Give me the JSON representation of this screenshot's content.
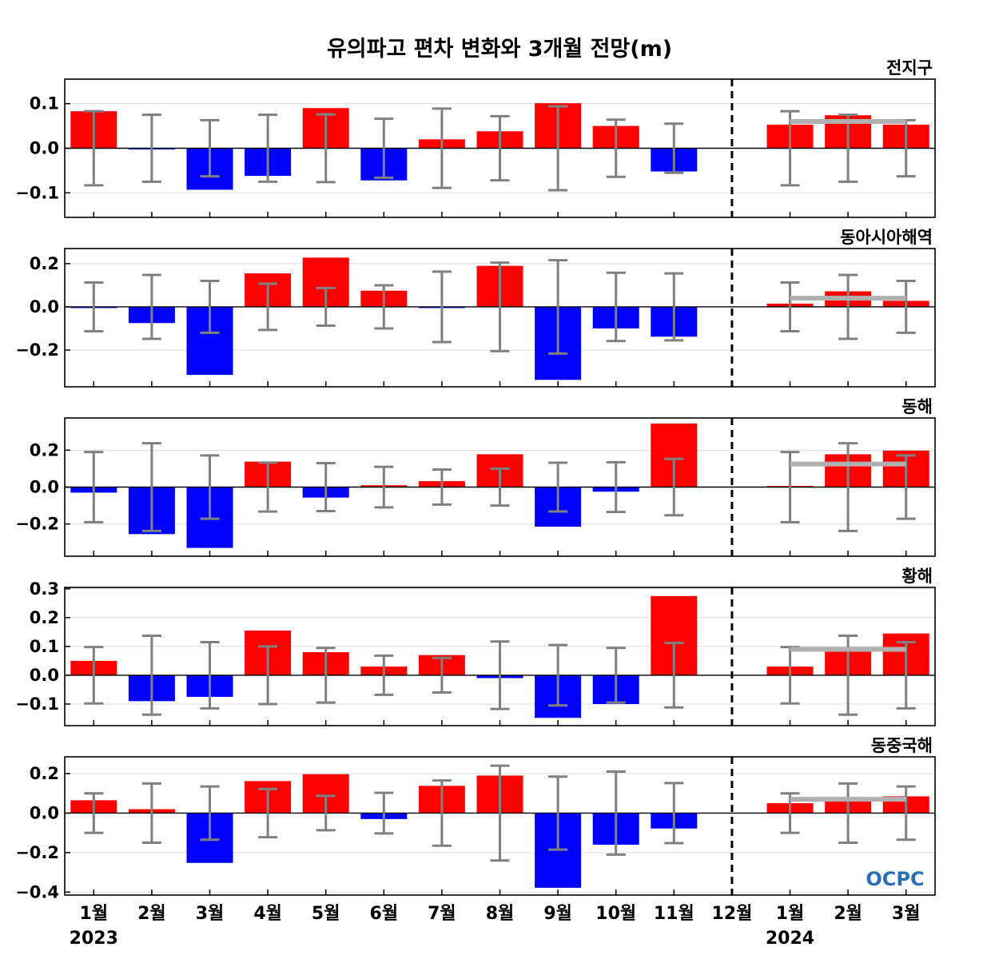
{
  "chart_data": {
    "type": "bar",
    "title": "유의파고 편차 변화와 3개월 전망(m)",
    "categories": [
      "1월",
      "2월",
      "3월",
      "4월",
      "5월",
      "6월",
      "7월",
      "8월",
      "9월",
      "10월",
      "11월",
      "12월",
      "1월",
      "2월",
      "3월"
    ],
    "year_labels": [
      "2023",
      "2024"
    ],
    "logo_text": "OCPC",
    "colors": {
      "positive": "#ff0000",
      "negative": "#0000ff",
      "errorbar": "#808080",
      "outlook_line": "#b0b0b0"
    },
    "panels": [
      {
        "region": "전지구",
        "ylim": [
          -0.155,
          0.155
        ],
        "yticks": [
          "0.1",
          "0.0",
          "−0.1"
        ],
        "ytick_values": [
          0.1,
          0.0,
          -0.1
        ],
        "values": [
          0.083,
          -0.001,
          -0.093,
          -0.062,
          0.09,
          -0.072,
          0.02,
          0.038,
          0.101,
          0.05,
          -0.052,
          0.0,
          0.053,
          0.074,
          0.053
        ],
        "error_range": [
          0.083,
          0.075,
          0.063,
          0.075,
          0.076,
          0.066,
          0.089,
          0.072,
          0.094,
          0.064,
          0.055,
          null,
          0.083,
          0.075,
          0.063
        ],
        "outlook_level": 0.06
      },
      {
        "region": "동아시아해역",
        "ylim": [
          -0.37,
          0.27
        ],
        "yticks": [
          "0.2",
          "0.0",
          "−0.2"
        ],
        "ytick_values": [
          0.2,
          0.0,
          -0.2
        ],
        "values": [
          -0.003,
          -0.075,
          -0.315,
          0.155,
          0.228,
          0.075,
          -0.002,
          0.19,
          -0.338,
          -0.1,
          -0.138,
          0.0,
          0.015,
          0.072,
          0.028
        ],
        "error_range": [
          0.113,
          0.148,
          0.12,
          0.107,
          0.087,
          0.1,
          0.163,
          0.205,
          0.216,
          0.158,
          0.155,
          null,
          0.113,
          0.148,
          0.12
        ],
        "outlook_level": 0.04
      },
      {
        "region": "동해",
        "ylim": [
          -0.375,
          0.375
        ],
        "yticks": [
          "0.2",
          "0.0",
          "−0.2"
        ],
        "ytick_values": [
          0.2,
          0.0,
          -0.2
        ],
        "values": [
          -0.03,
          -0.255,
          -0.33,
          0.138,
          -0.057,
          0.01,
          0.032,
          0.178,
          -0.215,
          -0.025,
          0.345,
          0.0,
          0.003,
          0.178,
          0.198
        ],
        "error_range": [
          0.19,
          0.238,
          0.172,
          0.133,
          0.13,
          0.11,
          0.095,
          0.1,
          0.132,
          0.135,
          0.153,
          null,
          0.19,
          0.238,
          0.172
        ],
        "outlook_level": 0.125
      },
      {
        "region": "황해",
        "ylim": [
          -0.175,
          0.305
        ],
        "yticks": [
          "0.3",
          "0.2",
          "0.1",
          "0.0",
          "−0.1"
        ],
        "ytick_values": [
          0.3,
          0.2,
          0.1,
          0.0,
          -0.1
        ],
        "values": [
          0.05,
          -0.09,
          -0.075,
          0.155,
          0.08,
          0.03,
          0.07,
          -0.01,
          -0.148,
          -0.1,
          0.275,
          0.0,
          0.03,
          0.09,
          0.145
        ],
        "error_range": [
          0.098,
          0.137,
          0.115,
          0.1,
          0.095,
          0.068,
          0.06,
          0.117,
          0.105,
          0.095,
          0.112,
          null,
          0.098,
          0.137,
          0.115
        ],
        "outlook_level": 0.09
      },
      {
        "region": "동중국해",
        "ylim": [
          -0.415,
          0.285
        ],
        "yticks": [
          "0.2",
          "0.0",
          "−0.2",
          "−0.4"
        ],
        "ytick_values": [
          0.2,
          0.0,
          -0.2,
          -0.4
        ],
        "values": [
          0.065,
          0.02,
          -0.252,
          0.162,
          0.197,
          -0.03,
          0.138,
          0.19,
          -0.378,
          -0.16,
          -0.078,
          0.0,
          0.05,
          0.08,
          0.085
        ],
        "error_range": [
          0.1,
          0.15,
          0.135,
          0.122,
          0.087,
          0.103,
          0.165,
          0.24,
          0.185,
          0.21,
          0.152,
          null,
          0.1,
          0.15,
          0.135
        ],
        "outlook_level": 0.07
      }
    ]
  }
}
